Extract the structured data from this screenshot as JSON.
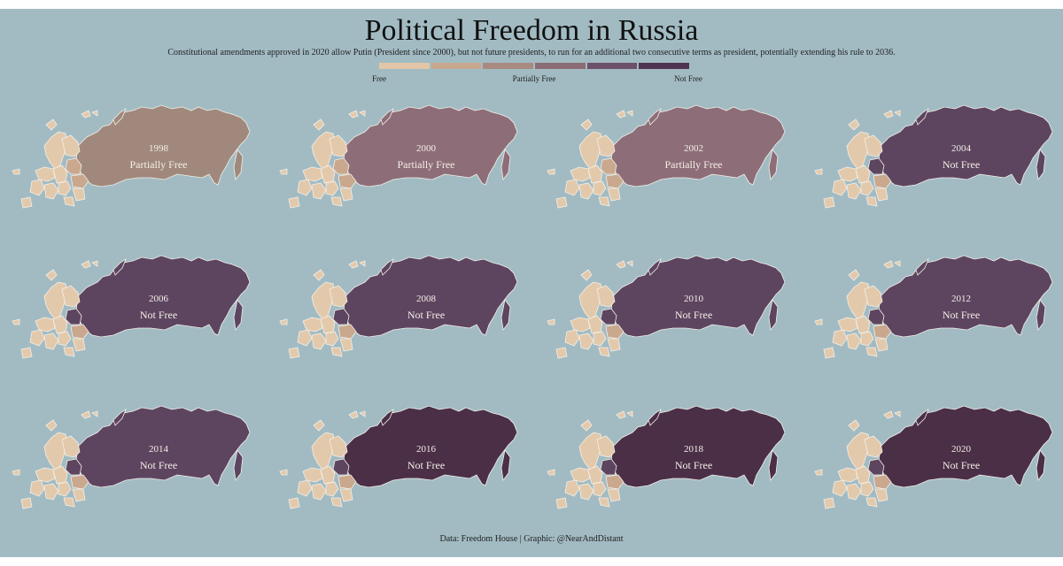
{
  "title": "Political Freedom in Russia",
  "subtitle": "Constitutional amendments approved in 2020 allow Putin (President since 2000), but not future presidents, to run for an additional two consecutive terms as president, potentially extending his rule to 2036.",
  "legend": {
    "labels": [
      "Free",
      "Partially Free",
      "Not Free"
    ],
    "colors": [
      "#e2c6a7",
      "#c7a88f",
      "#a98a7e",
      "#8b6c74",
      "#6d506a",
      "#4f3451"
    ]
  },
  "colors": {
    "background": "#a2bbc3",
    "europe_free": "#e3c9ab",
    "europe_partial": "#c9a88e",
    "europe_not_free": "#5d4560",
    "outline": "#f3efe8"
  },
  "panels": [
    {
      "year": "1998",
      "status": "Partially Free",
      "russia_color": "#a0897c"
    },
    {
      "year": "2000",
      "status": "Partially Free",
      "russia_color": "#8d6e78"
    },
    {
      "year": "2002",
      "status": "Partially Free",
      "russia_color": "#8d6e78"
    },
    {
      "year": "2004",
      "status": "Not Free",
      "russia_color": "#5d4560"
    },
    {
      "year": "2006",
      "status": "Not Free",
      "russia_color": "#5d4560"
    },
    {
      "year": "2008",
      "status": "Not Free",
      "russia_color": "#5d4560"
    },
    {
      "year": "2010",
      "status": "Not Free",
      "russia_color": "#5d4560"
    },
    {
      "year": "2012",
      "status": "Not Free",
      "russia_color": "#5d4560"
    },
    {
      "year": "2014",
      "status": "Not Free",
      "russia_color": "#5d4560"
    },
    {
      "year": "2016",
      "status": "Not Free",
      "russia_color": "#4a2f47"
    },
    {
      "year": "2018",
      "status": "Not Free",
      "russia_color": "#4a2f47"
    },
    {
      "year": "2020",
      "status": "Not Free",
      "russia_color": "#4a2f47"
    }
  ],
  "source": "Data: Freedom House | Graphic: @NearAndDistant"
}
